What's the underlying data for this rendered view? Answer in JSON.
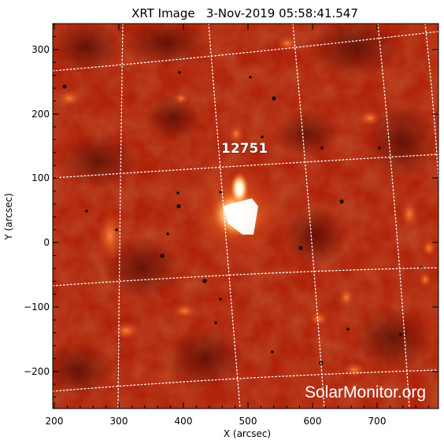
{
  "title": "XRT Image   3-Nov-2019 05:58:41.547",
  "axes": {
    "xlabel": "X (arcsec)",
    "ylabel": "Y (arcsec)",
    "x_ticks": [
      "200",
      "300",
      "400",
      "500",
      "600",
      "700"
    ],
    "y_ticks": [
      "300",
      "200",
      "100",
      "0",
      "−100",
      "−200"
    ]
  },
  "active_region": {
    "label": "12751"
  },
  "watermark": "SolarMonitor.org",
  "colors": {
    "background": "#ffffff",
    "sun_base": "#b0230b",
    "sun_dark": "#5a0e05",
    "sun_bright": "#ffffff",
    "grid": "#ffffff",
    "axis": "#000000"
  },
  "grid": "heliographic dotted grid lines"
}
